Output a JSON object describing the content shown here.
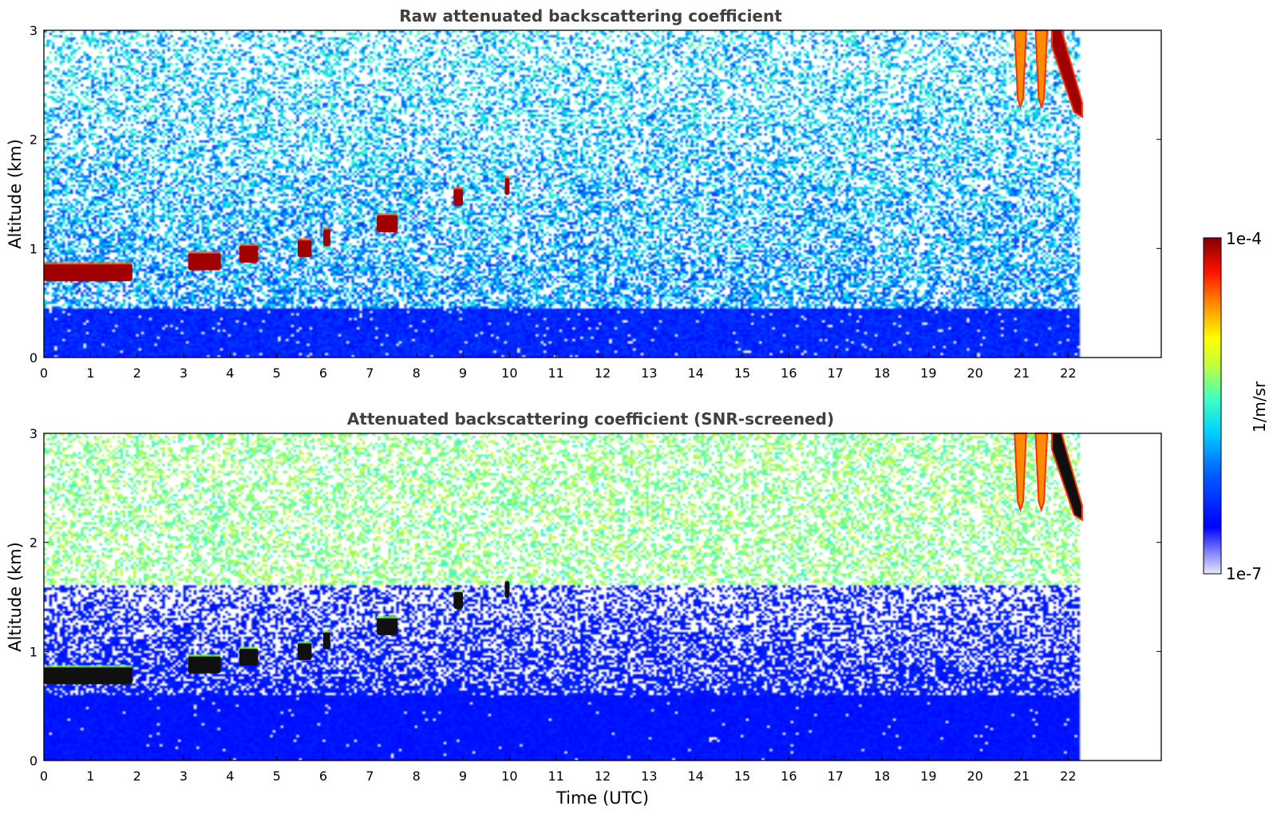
{
  "chart_data": [
    {
      "type": "heatmap",
      "title": "Raw attenuated backscattering coefficient",
      "xlabel": "",
      "ylabel": "Altitude (km)",
      "xlim": [
        0,
        24
      ],
      "ylim": [
        0,
        3
      ],
      "xticks": [
        0,
        1,
        2,
        3,
        4,
        5,
        6,
        7,
        8,
        9,
        10,
        11,
        12,
        13,
        14,
        15,
        16,
        17,
        18,
        19,
        20,
        21,
        22
      ],
      "yticks": [
        0,
        1,
        2,
        3
      ],
      "data_end_hour": 22.3,
      "screened": false,
      "cloud_features": [
        {
          "t_start": 0.0,
          "t_end": 1.9,
          "alt_km": 0.78
        },
        {
          "t_start": 3.1,
          "t_end": 3.8,
          "alt_km": 0.88
        },
        {
          "t_start": 4.2,
          "t_end": 4.6,
          "alt_km": 0.95
        },
        {
          "t_start": 5.45,
          "t_end": 5.75,
          "alt_km": 1.0
        },
        {
          "t_start": 6.0,
          "t_end": 6.15,
          "alt_km": 1.1
        },
        {
          "t_start": 7.15,
          "t_end": 7.6,
          "alt_km": 1.23
        },
        {
          "t_start": 8.8,
          "t_end": 9.0,
          "alt_km": 1.47
        },
        {
          "t_start": 9.9,
          "t_end": 10.0,
          "alt_km": 1.57
        }
      ],
      "fall_streaks": [
        {
          "t_start": 20.85,
          "t_end": 21.1,
          "alt_top_km": 3.0,
          "alt_bottom_km": 2.3
        },
        {
          "t_start": 21.3,
          "t_end": 21.55,
          "alt_top_km": 3.0,
          "alt_bottom_km": 2.3
        },
        {
          "t_start": 21.65,
          "t_end": 22.3,
          "alt_top_km": 3.0,
          "alt_bottom_km": 2.25
        }
      ]
    },
    {
      "type": "heatmap",
      "title": "Attenuated backscattering coefficient (SNR-screened)",
      "xlabel": "Time (UTC)",
      "ylabel": "Altitude (km)",
      "xlim": [
        0,
        24
      ],
      "ylim": [
        0,
        3
      ],
      "xticks": [
        0,
        1,
        2,
        3,
        4,
        5,
        6,
        7,
        8,
        9,
        10,
        11,
        12,
        13,
        14,
        15,
        16,
        17,
        18,
        19,
        20,
        21,
        22
      ],
      "yticks": [
        0,
        1,
        2,
        3
      ],
      "data_end_hour": 22.3,
      "screened": true
    }
  ],
  "colorbar": {
    "max_label": "1e-4",
    "min_label": "1e-7",
    "label": "1/m/sr",
    "scale": "log",
    "colormap": [
      "#000080",
      "#0000ff",
      "#0080ff",
      "#00ffff",
      "#80ff80",
      "#ffff00",
      "#ff8000",
      "#ff0000",
      "#800000"
    ]
  }
}
